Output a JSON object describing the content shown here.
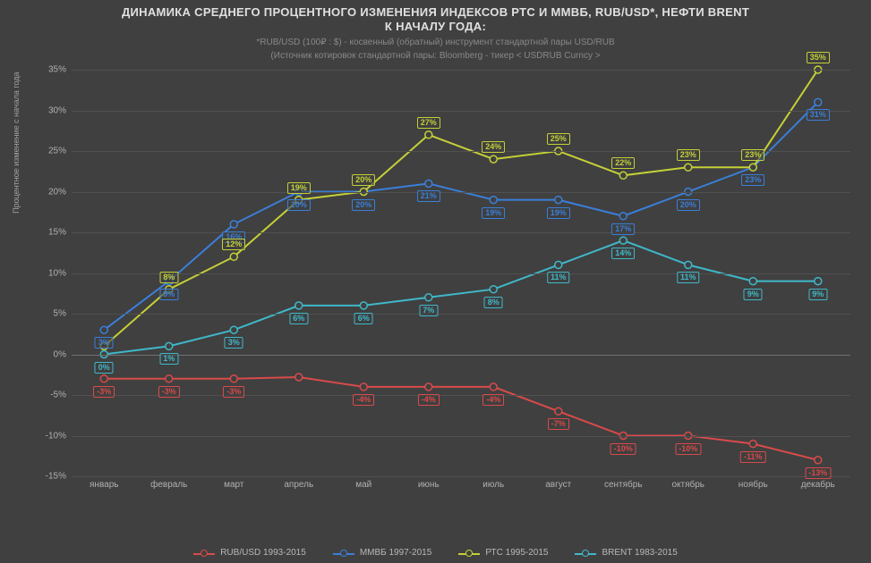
{
  "title": {
    "line1": "ДИНАМИКА СРЕДНЕГО ПРОЦЕНТНОГО ИЗМЕНЕНИЯ ИНДЕКСОВ РТС И ММВБ, RUB/USD*, НЕФТИ BRENT",
    "line2": "К НАЧАЛУ ГОДА:",
    "sub1": "*RUB/USD (100₽ : $) - косвенный (обратный) инструмент стандартной пары USD/RUB",
    "sub2": "(Источник котировок стандартной пары: Bloomberg - тикер < USDRUB Curncy >"
  },
  "yaxis": {
    "title": "Процентное изменение с начала года",
    "min": -15,
    "max": 35,
    "step": 5,
    "tick_format_pct": true
  },
  "xaxis": {
    "categories": [
      "январь",
      "февраль",
      "март",
      "апрель",
      "май",
      "июнь",
      "июль",
      "август",
      "сентябрь",
      "октябрь",
      "ноябрь",
      "декабрь"
    ]
  },
  "chart": {
    "type": "line",
    "background_color": "#404040",
    "grid_color": "#505050",
    "text_color": "#b0b0b0",
    "marker_size": 4,
    "line_width": 2
  },
  "series": [
    {
      "id": "rubusd",
      "label": "RUB/USD 1993-2015",
      "color": "#d94a4a",
      "values": [
        -3,
        -3,
        -3,
        -2.8,
        -4,
        -4,
        -4,
        -7,
        -10,
        -10,
        -11,
        -13
      ],
      "point_labels": [
        "-3%",
        "-3%",
        "-3%",
        "",
        "-4%",
        "-4%",
        "-4%",
        "-7%",
        "-10%",
        "-10%",
        "-11%",
        "-13%"
      ],
      "label_pos": "below"
    },
    {
      "id": "mmvb",
      "label": "ММВБ 1997-2015",
      "color": "#3a7fd9",
      "values": [
        3,
        9,
        16,
        20,
        20,
        21,
        19,
        19,
        17,
        20,
        23,
        31
      ],
      "point_labels": [
        "3%",
        "9%",
        "16%",
        "20%",
        "20%",
        "21%",
        "19%",
        "19%",
        "17%",
        "20%",
        "23%",
        "31%"
      ],
      "label_pos": "below"
    },
    {
      "id": "rtc",
      "label": "РТС 1995-2015",
      "color": "#c4d037",
      "values": [
        1,
        8,
        12,
        19,
        20,
        27,
        24,
        25,
        22,
        23,
        23,
        35
      ],
      "point_labels": [
        "",
        "8%",
        "12%",
        "19%",
        "20%",
        "27%",
        "24%",
        "25%",
        "22%",
        "23%",
        "23%",
        "35%"
      ],
      "label_pos": "above"
    },
    {
      "id": "brent",
      "label": "BRENT 1983-2015",
      "color": "#3fb8c9",
      "values": [
        0,
        1,
        3,
        6,
        6,
        7,
        8,
        11,
        14,
        11,
        9,
        9
      ],
      "point_labels": [
        "0%",
        "1%",
        "3%",
        "6%",
        "6%",
        "7%",
        "8%",
        "11%",
        "14%",
        "11%",
        "9%",
        "9%"
      ],
      "label_pos": "below"
    }
  ],
  "legend": {
    "items": [
      {
        "series": "rubusd"
      },
      {
        "series": "mmvb"
      },
      {
        "series": "rtc"
      },
      {
        "series": "brent"
      }
    ]
  }
}
